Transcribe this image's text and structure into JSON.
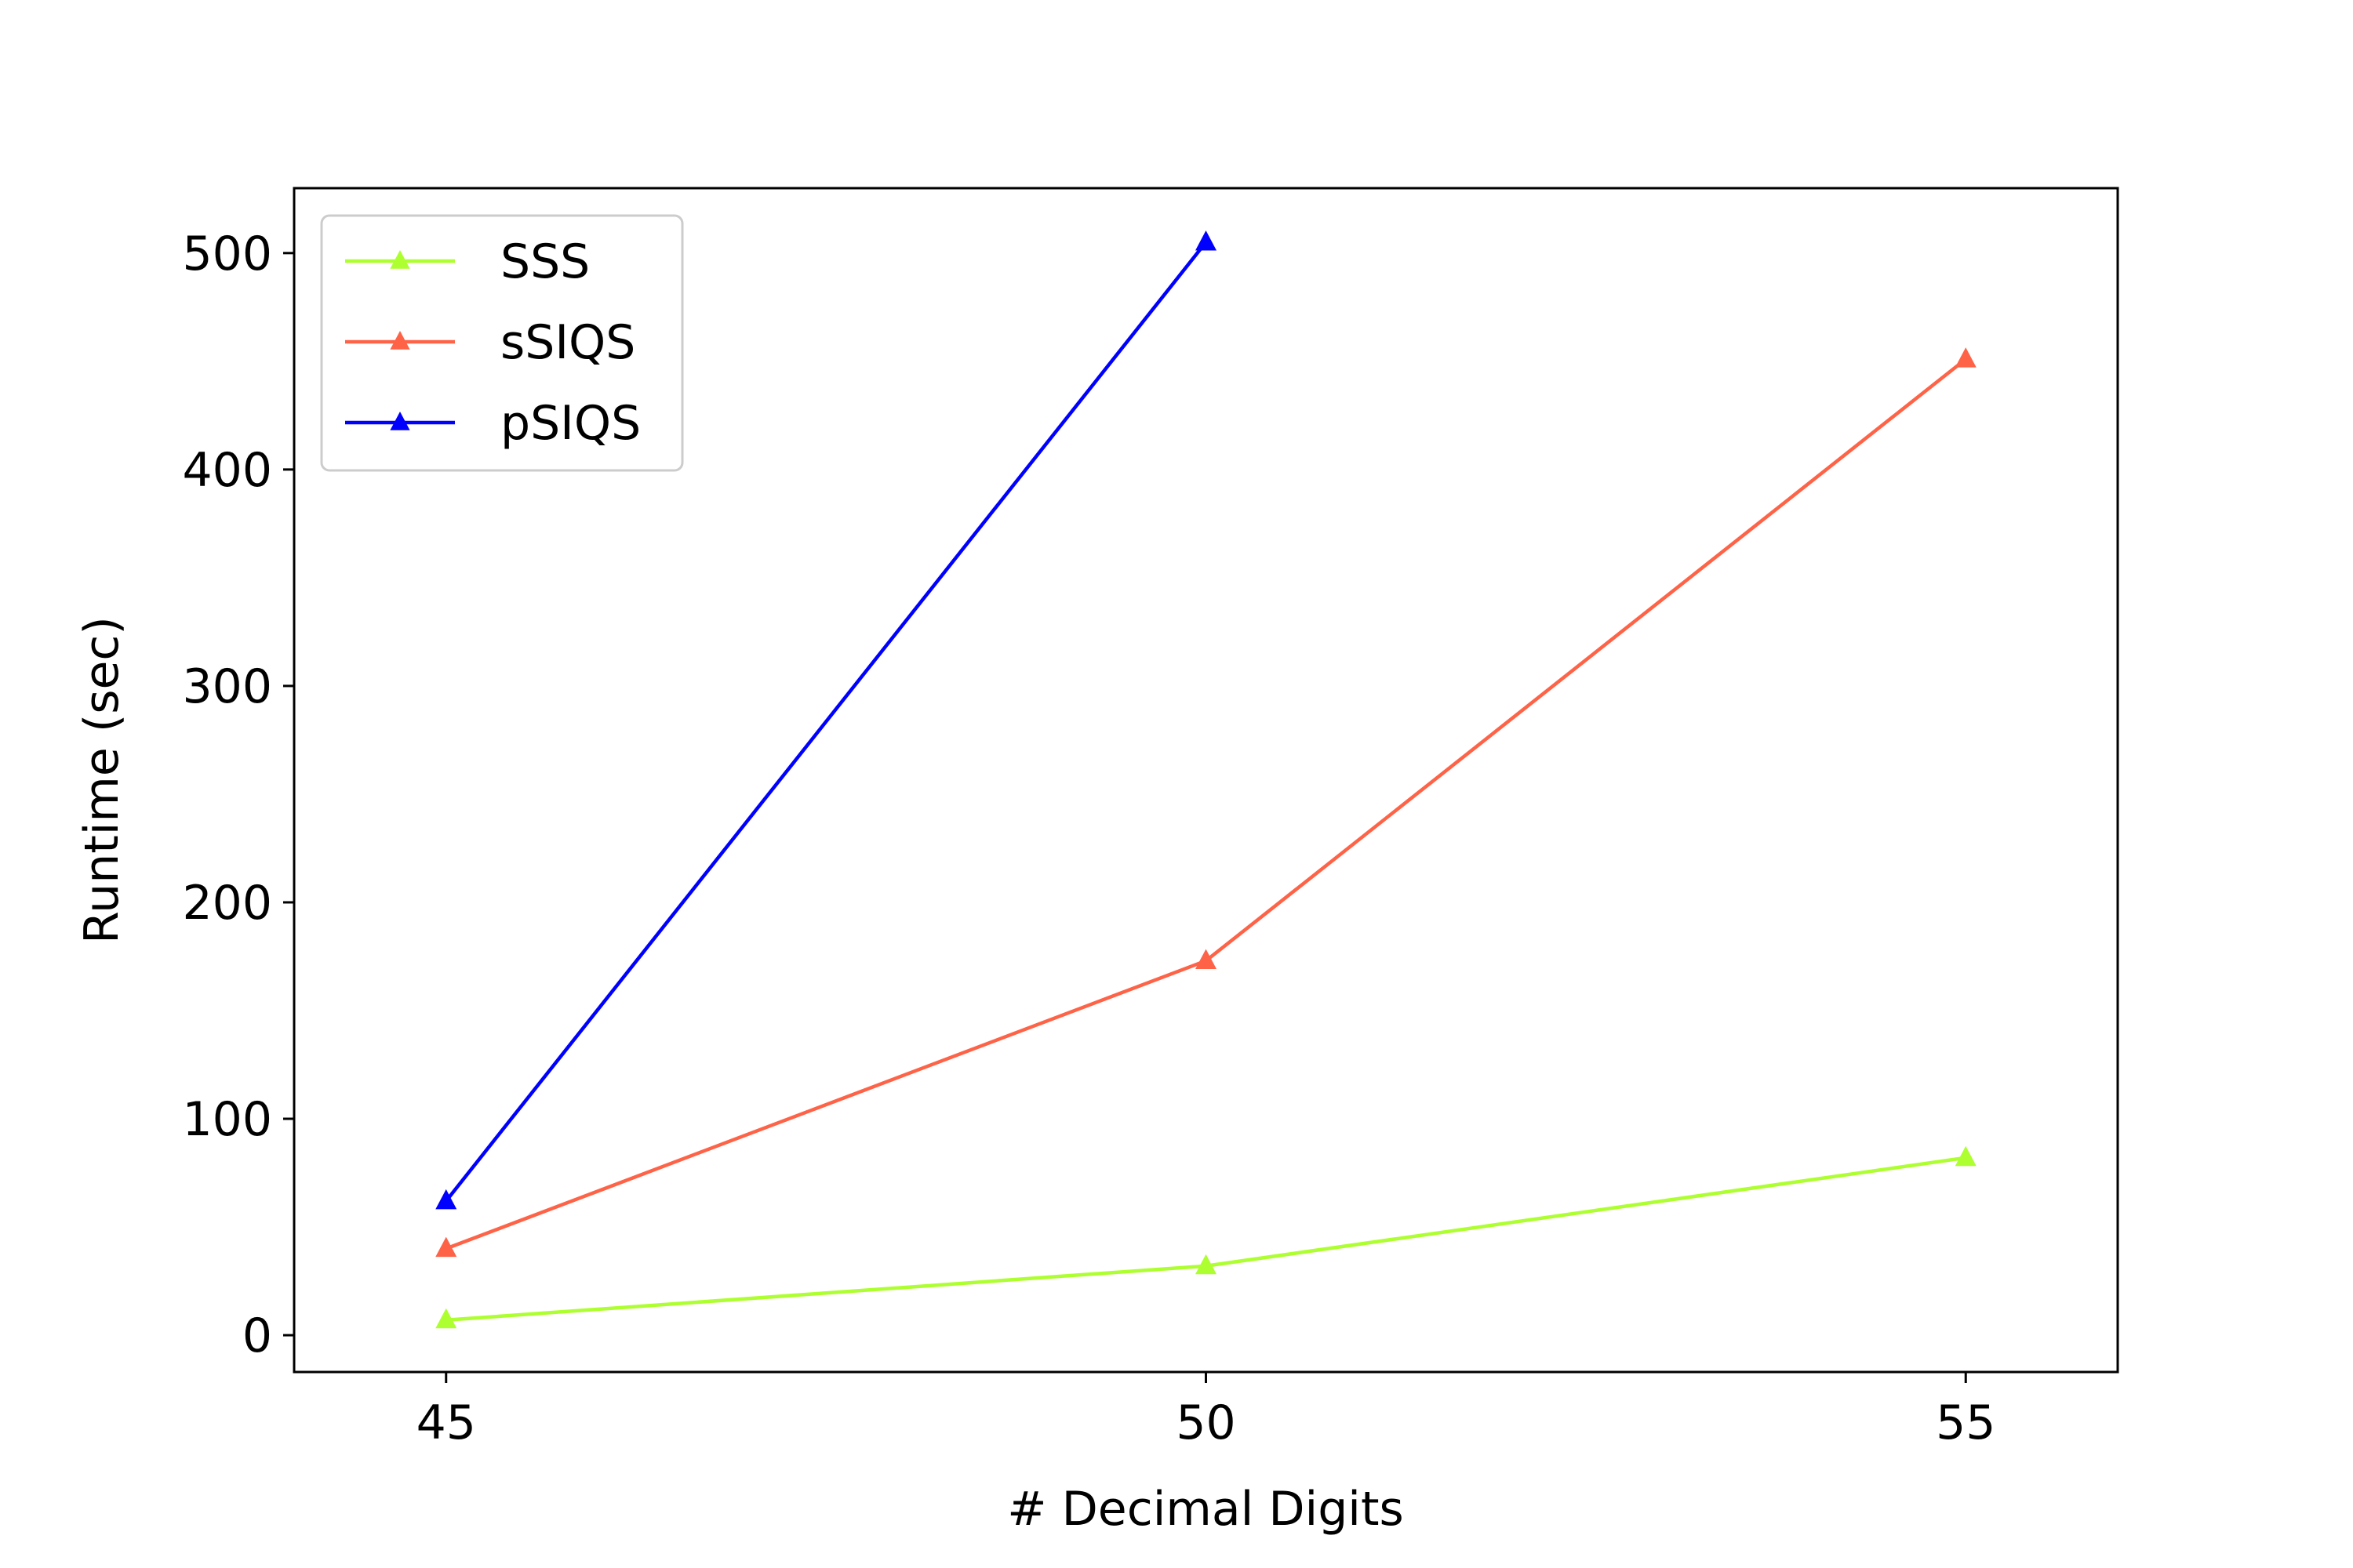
{
  "chart_data": {
    "type": "line",
    "title": "",
    "xlabel": "# Decimal Digits",
    "ylabel": "Runtime (sec)",
    "xlim": [
      44,
      56
    ],
    "ylim": [
      -17,
      530
    ],
    "xticks": [
      45,
      50,
      55
    ],
    "yticks": [
      0,
      100,
      200,
      300,
      400,
      500
    ],
    "grid": false,
    "legend_position": "top-left",
    "series": [
      {
        "name": "SSS",
        "color": "#adff2f",
        "marker": "triangle",
        "x": [
          45,
          50,
          55
        ],
        "y": [
          7,
          32,
          82
        ]
      },
      {
        "name": "sSIQS",
        "color": "#ff6347",
        "marker": "triangle",
        "x": [
          45,
          50,
          55
        ],
        "y": [
          40,
          173,
          451
        ]
      },
      {
        "name": "pSIQS",
        "color": "#0000ff",
        "marker": "triangle",
        "x": [
          45,
          50
        ],
        "y": [
          62,
          505
        ]
      }
    ]
  }
}
